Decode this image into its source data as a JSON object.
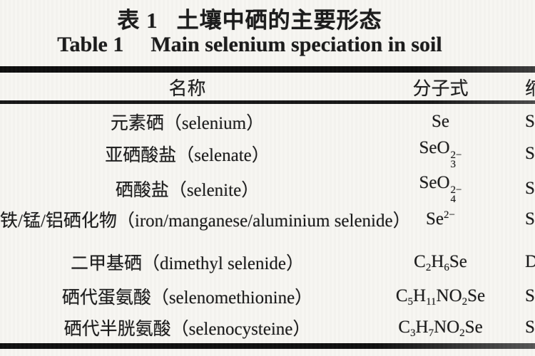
{
  "caption_zh": {
    "label": "表 1",
    "text": "土壤中硒的主要形态"
  },
  "caption_en": {
    "label": "Table 1",
    "text": "Main selenium speciation in soil"
  },
  "columns": {
    "name": "名称",
    "formula": "分子式",
    "abbr_clipped": "缩"
  },
  "rows": [
    {
      "name": "元素硒（selenium）",
      "formula": [
        {
          "t": "Se"
        }
      ],
      "abbr_clipped": "Se"
    },
    {
      "name": "亚硒酸盐（selenate）",
      "formula": [
        {
          "t": "SeO"
        },
        {
          "sub": "3",
          "sup": "2−"
        }
      ],
      "abbr_clipped": "Se"
    },
    {
      "name": "硒酸盐（selenite）",
      "formula": [
        {
          "t": "SeO"
        },
        {
          "sub": "4",
          "sup": "2−"
        }
      ],
      "abbr_clipped": "Se"
    },
    {
      "name": "铁/锰/铝硒化物（iron/manganese/aluminium selenide）",
      "formula": [
        {
          "t": "Se"
        },
        {
          "sup": "2−"
        }
      ],
      "abbr_clipped": "Se"
    },
    {
      "name": "二甲基硒（dimethyl selenide）",
      "formula": [
        {
          "t": "C"
        },
        {
          "sub": "2"
        },
        {
          "t": "H"
        },
        {
          "sub": "6"
        },
        {
          "t": "Se"
        }
      ],
      "abbr_clipped": "DM"
    },
    {
      "name": "硒代蛋氨酸（selenomethionine）",
      "formula": [
        {
          "t": "C"
        },
        {
          "sub": "5"
        },
        {
          "t": "H"
        },
        {
          "sub": "11"
        },
        {
          "t": "NO"
        },
        {
          "sub": "2"
        },
        {
          "t": "Se"
        }
      ],
      "abbr_clipped": "Se"
    },
    {
      "name": "硒代半胱氨酸（selenocysteine）",
      "formula": [
        {
          "t": "C"
        },
        {
          "sub": "3"
        },
        {
          "t": "H"
        },
        {
          "sub": "7"
        },
        {
          "t": "NO"
        },
        {
          "sub": "2"
        },
        {
          "t": "Se"
        }
      ],
      "abbr_clipped": "Se"
    }
  ],
  "colors": {
    "ink": "#1a1a1a",
    "paper": "#f7f6f2"
  }
}
